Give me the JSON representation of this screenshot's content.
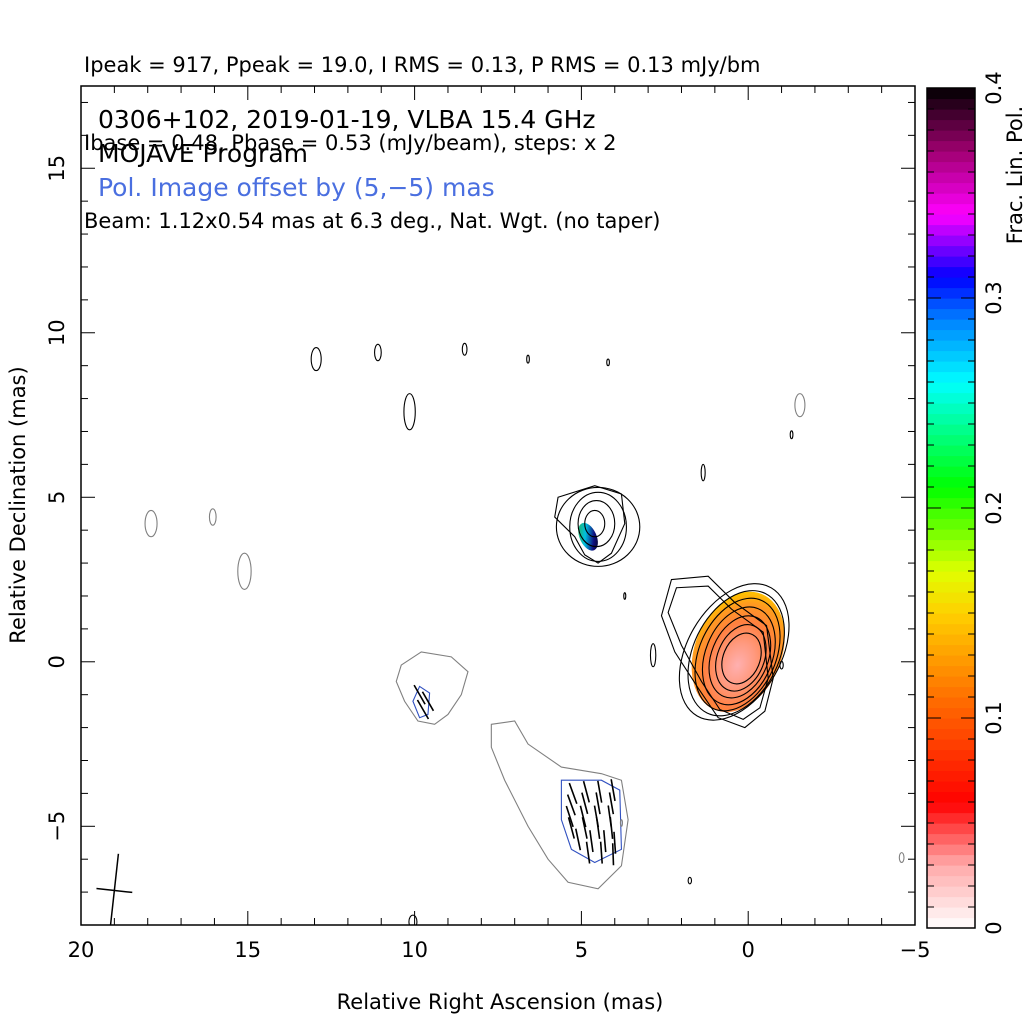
{
  "header": {
    "line1": "Ipeak = 917, Ppeak = 19.0, I RMS = 0.13, P RMS = 0.13 mJy/bm",
    "line2": "Ibase = 0.48, Pbase = 0.53 (mJy/beam), steps: x 2",
    "line3": "Beam: 1.12x0.54 mas at 6.3 deg., Nat. Wgt. (no taper)"
  },
  "annotations": {
    "source": "0306+102, 2019-01-19, VLBA 15.4 GHz",
    "program": "MOJAVE Program",
    "offset_note": "Pol. Image offset by (5,−5) mas",
    "offset_color": "#4a6fe0"
  },
  "chart_data": {
    "type": "contour",
    "xlabel": "Relative Right Ascension (mas)",
    "ylabel": "Relative Declination (mas)",
    "xlim": [
      20,
      -5
    ],
    "ylim": [
      -8,
      17.5
    ],
    "x_ticks": [
      "20",
      "15",
      "10",
      "5",
      "0",
      "−5"
    ],
    "x_tick_values": [
      20,
      15,
      10,
      5,
      0,
      -5
    ],
    "y_ticks": [
      "−5",
      "0",
      "5",
      "10",
      "15"
    ],
    "y_tick_values": [
      -5,
      0,
      5,
      10,
      15
    ],
    "colorbar": {
      "label": "Frac. Lin. Pol.",
      "range": [
        0,
        0.4
      ],
      "ticks": [
        "0",
        "0.1",
        "0.2",
        "0.3",
        "0.4"
      ],
      "tick_values": [
        0,
        0.1,
        0.2,
        0.3,
        0.4
      ],
      "stops": [
        {
          "v": 0.0,
          "color": "#ffffff"
        },
        {
          "v": 0.03,
          "color": "#ffaaaa"
        },
        {
          "v": 0.06,
          "color": "#ff0000"
        },
        {
          "v": 0.11,
          "color": "#ff7000"
        },
        {
          "v": 0.15,
          "color": "#ffd000"
        },
        {
          "v": 0.17,
          "color": "#e0ff00"
        },
        {
          "v": 0.21,
          "color": "#00ff00"
        },
        {
          "v": 0.26,
          "color": "#00ffff"
        },
        {
          "v": 0.29,
          "color": "#0080ff"
        },
        {
          "v": 0.31,
          "color": "#0000ff"
        },
        {
          "v": 0.34,
          "color": "#ff00ff"
        },
        {
          "v": 0.37,
          "color": "#a00070"
        },
        {
          "v": 0.4,
          "color": "#000000"
        }
      ]
    },
    "stokes_i_contours": {
      "color": "#000000",
      "core": [
        {
          "x": 0.2,
          "y": 0.1,
          "rx": 0.55,
          "ry": 0.8,
          "rot": 22
        },
        {
          "x": 0.22,
          "y": 0.12,
          "rx": 0.7,
          "ry": 1.05,
          "rot": 22
        },
        {
          "x": 0.25,
          "y": 0.15,
          "rx": 0.85,
          "ry": 1.3,
          "rot": 22
        },
        {
          "x": 0.28,
          "y": 0.18,
          "rx": 1.0,
          "ry": 1.55,
          "rot": 22
        },
        {
          "x": 0.32,
          "y": 0.22,
          "rx": 1.15,
          "ry": 1.8,
          "rot": 24
        },
        {
          "x": 0.36,
          "y": 0.26,
          "rx": 1.28,
          "ry": 2.02,
          "rot": 26
        },
        {
          "x": 0.42,
          "y": 0.3,
          "rx": 1.4,
          "ry": 2.25,
          "rot": 30
        }
      ],
      "knot": [
        {
          "x": 4.6,
          "y": 4.2,
          "rx": 0.3,
          "ry": 0.4,
          "rot": 0
        },
        {
          "x": 4.55,
          "y": 4.2,
          "rx": 0.55,
          "ry": 0.7,
          "rot": 0
        },
        {
          "x": 4.5,
          "y": 4.1,
          "rx": 0.85,
          "ry": 1.05,
          "rot": 0
        },
        {
          "x": 4.5,
          "y": 4.1,
          "rx": 1.25,
          "ry": 1.2,
          "rot": 0
        }
      ],
      "islands": [
        {
          "x": 12.95,
          "y": 9.2,
          "rx": 0.15,
          "ry": 0.35
        },
        {
          "x": 11.1,
          "y": 9.4,
          "rx": 0.1,
          "ry": 0.25
        },
        {
          "x": 8.5,
          "y": 9.5,
          "rx": 0.07,
          "ry": 0.18
        },
        {
          "x": 6.6,
          "y": 9.2,
          "rx": 0.04,
          "ry": 0.12
        },
        {
          "x": 4.2,
          "y": 9.1,
          "rx": 0.04,
          "ry": 0.1
        },
        {
          "x": 10.15,
          "y": 7.6,
          "rx": 0.17,
          "ry": 0.55
        },
        {
          "x": -1.3,
          "y": 6.9,
          "rx": 0.04,
          "ry": 0.12
        },
        {
          "x": 1.35,
          "y": 5.75,
          "rx": 0.06,
          "ry": 0.25
        },
        {
          "x": 2.85,
          "y": 0.2,
          "rx": 0.08,
          "ry": 0.35
        },
        {
          "x": 3.7,
          "y": 2.0,
          "rx": 0.03,
          "ry": 0.1
        },
        {
          "x": 1.75,
          "y": -6.65,
          "rx": 0.05,
          "ry": 0.1
        },
        {
          "x": -1.0,
          "y": -0.1,
          "rx": 0.05,
          "ry": 0.12
        },
        {
          "x": 10.05,
          "y": -7.9,
          "rx": 0.12,
          "ry": 0.2
        }
      ]
    },
    "polarization_contours": {
      "color": "#808080",
      "islands": [
        {
          "x": 17.9,
          "y": 4.2,
          "rx": 0.18,
          "ry": 0.4
        },
        {
          "x": 16.05,
          "y": 4.4,
          "rx": 0.1,
          "ry": 0.25
        },
        {
          "x": 15.1,
          "y": 2.75,
          "rx": 0.2,
          "ry": 0.55
        },
        {
          "x": -1.55,
          "y": 7.8,
          "rx": 0.15,
          "ry": 0.35
        },
        {
          "x": -4.6,
          "y": -5.95,
          "rx": 0.07,
          "ry": 0.15
        },
        {
          "x": 3.8,
          "y": -4.9,
          "rx": 0.03,
          "ry": 0.1
        }
      ]
    },
    "polarization_core_patch": {
      "x": 0.3,
      "y": 0.3,
      "fraction_center": 0.07,
      "fraction_edge": 0.1
    },
    "polarization_knot_patch": {
      "x": 4.8,
      "y": 3.8,
      "fraction_range": [
        0.2,
        0.4
      ]
    },
    "evpa_vectors": [
      {
        "x": 9.85,
        "y": -1.0,
        "angle": 60
      },
      {
        "x": 9.6,
        "y": -1.2,
        "angle": 60
      },
      {
        "x": 9.75,
        "y": -1.45,
        "angle": 60
      },
      {
        "x": 5.25,
        "y": -4.0,
        "angle": 70
      },
      {
        "x": 4.85,
        "y": -3.95,
        "angle": 75
      },
      {
        "x": 4.45,
        "y": -3.95,
        "angle": 80
      },
      {
        "x": 4.05,
        "y": -3.9,
        "angle": 80
      },
      {
        "x": 5.3,
        "y": -4.35,
        "angle": 70
      },
      {
        "x": 4.9,
        "y": -4.3,
        "angle": 75
      },
      {
        "x": 4.5,
        "y": -4.3,
        "angle": 80
      },
      {
        "x": 4.1,
        "y": -4.3,
        "angle": 80
      },
      {
        "x": 5.35,
        "y": -4.7,
        "angle": 72
      },
      {
        "x": 4.95,
        "y": -4.7,
        "angle": 76
      },
      {
        "x": 4.55,
        "y": -4.7,
        "angle": 80
      },
      {
        "x": 4.15,
        "y": -4.7,
        "angle": 82
      },
      {
        "x": 5.3,
        "y": -5.05,
        "angle": 75
      },
      {
        "x": 4.9,
        "y": -5.05,
        "angle": 78
      },
      {
        "x": 4.5,
        "y": -5.05,
        "angle": 82
      },
      {
        "x": 4.1,
        "y": -5.05,
        "angle": 84
      },
      {
        "x": 5.1,
        "y": -5.4,
        "angle": 78
      },
      {
        "x": 4.7,
        "y": -5.45,
        "angle": 82
      },
      {
        "x": 4.3,
        "y": -5.45,
        "angle": 85
      },
      {
        "x": 4.0,
        "y": -5.5,
        "angle": 86
      },
      {
        "x": 4.8,
        "y": -5.8,
        "angle": 82
      },
      {
        "x": 4.4,
        "y": -5.8,
        "angle": 86
      },
      {
        "x": 4.05,
        "y": -5.85,
        "angle": 88
      }
    ],
    "beam": {
      "x": 19.0,
      "y": -6.95,
      "major_mas": 1.12,
      "minor_mas": 0.54,
      "pa_deg": 6.3
    }
  }
}
